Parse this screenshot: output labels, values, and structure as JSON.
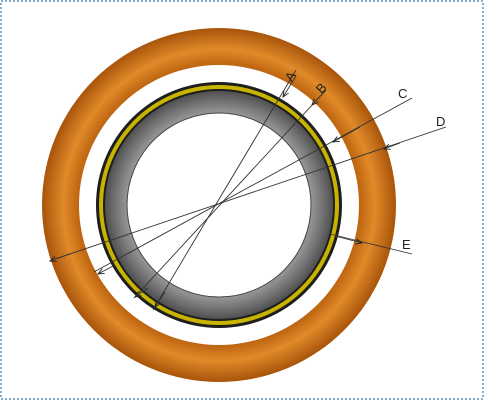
{
  "labels": [
    "A",
    "B",
    "C",
    "D",
    "E"
  ]
}
